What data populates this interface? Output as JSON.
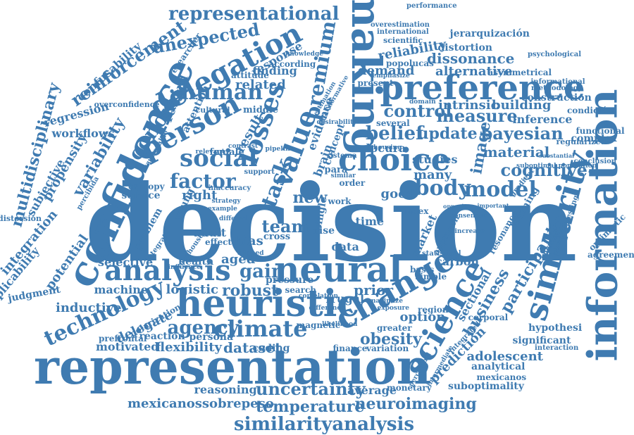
{
  "word_cloud": {
    "color": "#3f7bb1",
    "words": [
      {
        "id": "decision",
        "text": "decision"
      },
      {
        "id": "representation",
        "text": "representation"
      },
      {
        "id": "information",
        "text": "information"
      },
      {
        "id": "confidence",
        "text": "confidence"
      },
      {
        "id": "making",
        "text": "making"
      },
      {
        "id": "heuristic",
        "text": "heuristic"
      },
      {
        "id": "neural",
        "text": "neural"
      },
      {
        "id": "preference",
        "text": "preference"
      },
      {
        "id": "similarity",
        "text": "similarity"
      },
      {
        "id": "change",
        "text": "change"
      },
      {
        "id": "science",
        "text": "science"
      },
      {
        "id": "choice",
        "text": "choice"
      },
      {
        "id": "analysis",
        "text": "analysis"
      },
      {
        "id": "representational",
        "text": "representational"
      },
      {
        "id": "delegation",
        "text": "delegation"
      },
      {
        "id": "person",
        "text": "person"
      },
      {
        "id": "value",
        "text": "value"
      },
      {
        "id": "premium",
        "text": "premium"
      },
      {
        "id": "losses",
        "text": "losses"
      },
      {
        "id": "human",
        "text": "human"
      },
      {
        "id": "social",
        "text": "social"
      },
      {
        "id": "task",
        "text": "task"
      },
      {
        "id": "economic",
        "text": "economic"
      },
      {
        "id": "reinforcement",
        "text": "reinforcement"
      },
      {
        "id": "confusability",
        "text": "confusability"
      },
      {
        "id": "multidisciplinary",
        "text": "multidisciplinary"
      },
      {
        "id": "control",
        "text": "control"
      },
      {
        "id": "belief",
        "text": "belief"
      },
      {
        "id": "update",
        "text": "update"
      },
      {
        "id": "image",
        "text": "image"
      },
      {
        "id": "measure",
        "text": "measure"
      },
      {
        "id": "bayesian",
        "text": "bayesian"
      },
      {
        "id": "cognitive",
        "text": "cognitive"
      },
      {
        "id": "material",
        "text": "material"
      },
      {
        "id": "body",
        "text": "body"
      },
      {
        "id": "model",
        "text": "model"
      },
      {
        "id": "factor",
        "text": "factor"
      },
      {
        "id": "technology",
        "text": "technology"
      },
      {
        "id": "climate",
        "text": "climate"
      },
      {
        "id": "agency",
        "text": "agency"
      },
      {
        "id": "gain",
        "text": "gain"
      },
      {
        "id": "robust",
        "text": "robust"
      },
      {
        "id": "dataset",
        "text": "dataset"
      },
      {
        "id": "flexibility",
        "text": "flexibility"
      },
      {
        "id": "delegate",
        "text": "delegate"
      },
      {
        "id": "motivated",
        "text": "motivated"
      },
      {
        "id": "uncertainty",
        "text": "uncertainty"
      },
      {
        "id": "temperature",
        "text": "temperature"
      },
      {
        "id": "neuroimaging",
        "text": "neuroimaging"
      },
      {
        "id": "similarityanalysis",
        "text": "similarityanalysis"
      },
      {
        "id": "mexicanossobrepeso",
        "text": "mexicanossobrepeso"
      },
      {
        "id": "reasoning",
        "text": "reasoning"
      },
      {
        "id": "average",
        "text": "average"
      },
      {
        "id": "obesity",
        "text": "obesity"
      },
      {
        "id": "business",
        "text": "business"
      },
      {
        "id": "prediction",
        "text": "prediction"
      },
      {
        "id": "adolescent",
        "text": "adolescent"
      },
      {
        "id": "analytical",
        "text": "analytical"
      },
      {
        "id": "suboptimality",
        "text": "suboptimality"
      },
      {
        "id": "hypothesi",
        "text": "hypothesi"
      },
      {
        "id": "significant",
        "text": "significant"
      },
      {
        "id": "participant",
        "text": "participant"
      },
      {
        "id": "reliability",
        "text": "reliability"
      },
      {
        "id": "dissonance",
        "text": "dissonance"
      },
      {
        "id": "alternative",
        "text": "alternative"
      },
      {
        "id": "demand",
        "text": "demand"
      },
      {
        "id": "intrinsic",
        "text": "intrinsic"
      },
      {
        "id": "building",
        "text": "building"
      },
      {
        "id": "inference",
        "text": "inference"
      },
      {
        "id": "jerarquizacion",
        "text": "jerarquización"
      },
      {
        "id": "construction",
        "text": "construction"
      },
      {
        "id": "distortion",
        "text": "distortion"
      },
      {
        "id": "asymmetrical",
        "text": "asymmetrical"
      },
      {
        "id": "overestimation",
        "text": "overestimation"
      },
      {
        "id": "international",
        "text": "international"
      },
      {
        "id": "scientific",
        "text": "scientific"
      },
      {
        "id": "popolucas",
        "text": "popolucas"
      },
      {
        "id": "performance",
        "text": "performance"
      },
      {
        "id": "unexpected",
        "text": "unexpected"
      },
      {
        "id": "reward",
        "text": "reward"
      },
      {
        "id": "response",
        "text": "response"
      },
      {
        "id": "finding",
        "text": "finding"
      },
      {
        "id": "related",
        "text": "related"
      },
      {
        "id": "result",
        "text": "result"
      },
      {
        "id": "regression",
        "text": "regression"
      },
      {
        "id": "workflows",
        "text": "workflows"
      },
      {
        "id": "variability",
        "text": "variability"
      },
      {
        "id": "propensity",
        "text": "propensity"
      },
      {
        "id": "subjective",
        "text": "subjective"
      },
      {
        "id": "integration",
        "text": "integration"
      },
      {
        "id": "potential",
        "text": "potential"
      },
      {
        "id": "replicability",
        "text": "replicability"
      },
      {
        "id": "judgment",
        "text": "judgment"
      },
      {
        "id": "service",
        "text": "service"
      },
      {
        "id": "right",
        "text": "right"
      },
      {
        "id": "new",
        "text": "new"
      },
      {
        "id": "team",
        "text": "team"
      },
      {
        "id": "bias",
        "text": "bias"
      },
      {
        "id": "adult",
        "text": "adult"
      },
      {
        "id": "effect",
        "text": "effect"
      },
      {
        "id": "health",
        "text": "health"
      },
      {
        "id": "aged",
        "text": "aged"
      },
      {
        "id": "selective",
        "text": "selective"
      },
      {
        "id": "machine",
        "text": "machine"
      },
      {
        "id": "logistic",
        "text": "logistic"
      },
      {
        "id": "inductive",
        "text": "inductive"
      },
      {
        "id": "prefrontal",
        "text": "prefrontal"
      },
      {
        "id": "reaction",
        "text": "reaction"
      },
      {
        "id": "persona",
        "text": "persona"
      },
      {
        "id": "coding",
        "text": "coding"
      },
      {
        "id": "finance",
        "text": "finance"
      },
      {
        "id": "variation",
        "text": "variation"
      },
      {
        "id": "prior",
        "text": "prior"
      },
      {
        "id": "frugal",
        "text": "frugal"
      },
      {
        "id": "option",
        "text": "option"
      },
      {
        "id": "region",
        "text": "region"
      },
      {
        "id": "market",
        "text": "market"
      },
      {
        "id": "carbon",
        "text": "carbon"
      },
      {
        "id": "good",
        "text": "good"
      },
      {
        "id": "many",
        "text": "many"
      },
      {
        "id": "locura",
        "text": "locura"
      },
      {
        "id": "studies",
        "text": "studies"
      },
      {
        "id": "data",
        "text": "data"
      },
      {
        "id": "time",
        "text": "time"
      },
      {
        "id": "order",
        "text": "order"
      },
      {
        "id": "young",
        "text": "young"
      },
      {
        "id": "pressure",
        "text": "pressure"
      },
      {
        "id": "search",
        "text": "search"
      },
      {
        "id": "greater",
        "text": "greater"
      },
      {
        "id": "magnetic",
        "text": "magnetic"
      },
      {
        "id": "polarization",
        "text": "polarization"
      },
      {
        "id": "monetary",
        "text": "monetary"
      },
      {
        "id": "mexicanos",
        "text": "mexicanos"
      },
      {
        "id": "learning",
        "text": "learning"
      },
      {
        "id": "optimistic",
        "text": "optimistic"
      },
      {
        "id": "agreement",
        "text": "agreement"
      },
      {
        "id": "complex",
        "text": "complex"
      },
      {
        "id": "functional",
        "text": "functional"
      },
      {
        "id": "conclusion",
        "text": "conclusion"
      },
      {
        "id": "regularized",
        "text": "regularized"
      },
      {
        "id": "condicion",
        "text": "condición"
      },
      {
        "id": "methodology",
        "text": "methodology"
      },
      {
        "id": "psychological",
        "text": "psychological"
      },
      {
        "id": "informational",
        "text": "informational"
      },
      {
        "id": "emphasize",
        "text": "emphasize"
      },
      {
        "id": "present",
        "text": "present"
      },
      {
        "id": "according",
        "text": "according"
      },
      {
        "id": "knowledge",
        "text": "knowledge"
      },
      {
        "id": "attitude",
        "text": "attitude"
      },
      {
        "id": "researcher",
        "text": "researcher"
      },
      {
        "id": "cultural",
        "text": "cultural"
      },
      {
        "id": "middle",
        "text": "middle"
      },
      {
        "id": "attention",
        "text": "attention"
      },
      {
        "id": "overconfidence",
        "text": "overconfidence"
      },
      {
        "id": "female",
        "text": "female"
      },
      {
        "id": "evidence",
        "text": "evidence"
      },
      {
        "id": "concept",
        "text": "concept"
      },
      {
        "id": "entropy",
        "text": "entropy"
      },
      {
        "id": "distorsion",
        "text": "distorsión"
      },
      {
        "id": "percibida",
        "text": "percibida"
      },
      {
        "id": "problem",
        "text": "problem"
      },
      {
        "id": "several",
        "text": "several"
      },
      {
        "id": "sistema",
        "text": "sistema"
      },
      {
        "id": "domain",
        "text": "domain"
      },
      {
        "id": "index",
        "text": "index"
      },
      {
        "id": "approach",
        "text": "approach"
      },
      {
        "id": "sectional",
        "text": "sectional"
      },
      {
        "id": "corporal",
        "text": "corporal"
      },
      {
        "id": "interaction",
        "text": "interaction"
      },
      {
        "id": "newssuggesting",
        "text": "newssuggesting"
      },
      {
        "id": "encoded",
        "text": "encoded"
      },
      {
        "id": "resonance",
        "text": "resonance"
      },
      {
        "id": "basis",
        "text": "basis"
      },
      {
        "id": "simple",
        "text": "simple"
      },
      {
        "id": "statistical",
        "text": "statistical"
      },
      {
        "id": "integrated",
        "text": "integrated"
      },
      {
        "id": "intermediate",
        "text": "intermediate"
      },
      {
        "id": "perceptual",
        "text": "perceptual"
      },
      {
        "id": "likelihood",
        "text": "likelihood"
      },
      {
        "id": "difference",
        "text": "difference"
      },
      {
        "id": "correlation",
        "text": "correlation"
      },
      {
        "id": "maximize",
        "text": "maximize"
      },
      {
        "id": "exposure",
        "text": "exposure"
      },
      {
        "id": "cross",
        "text": "cross"
      },
      {
        "id": "para",
        "text": "para"
      },
      {
        "id": "single",
        "text": "single"
      },
      {
        "id": "brain",
        "text": "brain"
      },
      {
        "id": "rise",
        "text": "rise"
      },
      {
        "id": "work",
        "text": "work"
      },
      {
        "id": "gradient",
        "text": "gradient"
      },
      {
        "id": "consensus",
        "text": "consensus"
      },
      {
        "id": "increase",
        "text": "increase"
      },
      {
        "id": "suboptimal",
        "text": "suboptimal population"
      },
      {
        "id": "substantial",
        "text": "substantial"
      },
      {
        "id": "important",
        "text": "important"
      },
      {
        "id": "opposite",
        "text": "opposite"
      },
      {
        "id": "housing",
        "text": "housing"
      },
      {
        "id": "similar",
        "text": "similar"
      },
      {
        "id": "support",
        "text": "support"
      },
      {
        "id": "inaccuracy",
        "text": "inaccuracy"
      },
      {
        "id": "strategy",
        "text": "strategy"
      },
      {
        "id": "differed",
        "text": "differed"
      },
      {
        "id": "greenhouse",
        "text": "greenhouse"
      },
      {
        "id": "integrate",
        "text": "integrate"
      },
      {
        "id": "aligned",
        "text": "aligned"
      },
      {
        "id": "influence",
        "text": "influence"
      },
      {
        "id": "desirability",
        "text": "desirability"
      },
      {
        "id": "normative",
        "text": "normative"
      },
      {
        "id": "estimation",
        "text": "estimation"
      },
      {
        "id": "analyse",
        "text": "analyse"
      },
      {
        "id": "vulnerable",
        "text": "vulnerable"
      },
      {
        "id": "relevant",
        "text": "relevant"
      },
      {
        "id": "contrast",
        "text": "contrast"
      },
      {
        "id": "pipeline",
        "text": "pipeline"
      },
      {
        "id": "example",
        "text": "example"
      }
    ]
  }
}
